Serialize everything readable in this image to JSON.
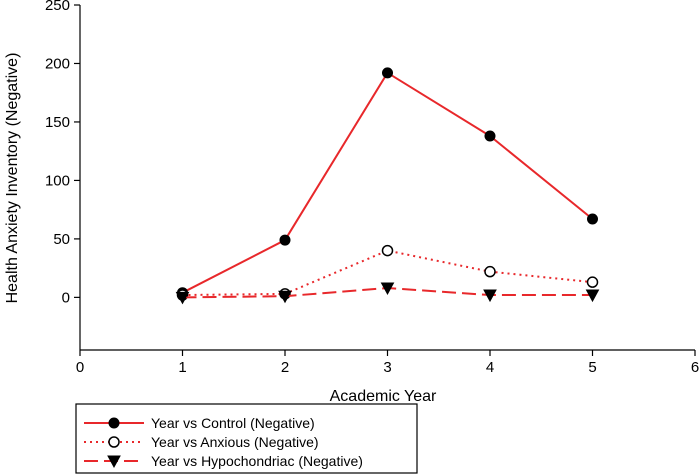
{
  "chart_data": {
    "type": "line",
    "title": "",
    "xlabel": "Academic Year",
    "ylabel": "Health Anxiety Inventory (Negative)",
    "xlim": [
      0,
      6
    ],
    "ylim": [
      -45,
      250
    ],
    "x_ticks": [
      0,
      1,
      2,
      3,
      4,
      5,
      6
    ],
    "y_ticks": [
      0,
      50,
      100,
      150,
      200,
      250
    ],
    "grid": false,
    "legend_position": "bottom-left",
    "series": [
      {
        "name": "Year vs Control (Negative)",
        "x": [
          1,
          2,
          3,
          4,
          5
        ],
        "values": [
          4,
          49,
          192,
          138,
          67
        ],
        "line_style": "solid",
        "marker": "filled-circle",
        "color": "#e8282b"
      },
      {
        "name": "Year vs Anxious (Negative)",
        "x": [
          1,
          2,
          3,
          4,
          5
        ],
        "values": [
          2,
          3,
          40,
          22,
          13
        ],
        "line_style": "dotted",
        "marker": "open-circle",
        "color": "#e8282b"
      },
      {
        "name": "Year vs Hypochondriac (Negative)",
        "x": [
          1,
          2,
          3,
          4,
          5
        ],
        "values": [
          0,
          1,
          8,
          2,
          2
        ],
        "line_style": "dashed",
        "marker": "filled-triangle-down",
        "color": "#e8282b"
      }
    ]
  }
}
